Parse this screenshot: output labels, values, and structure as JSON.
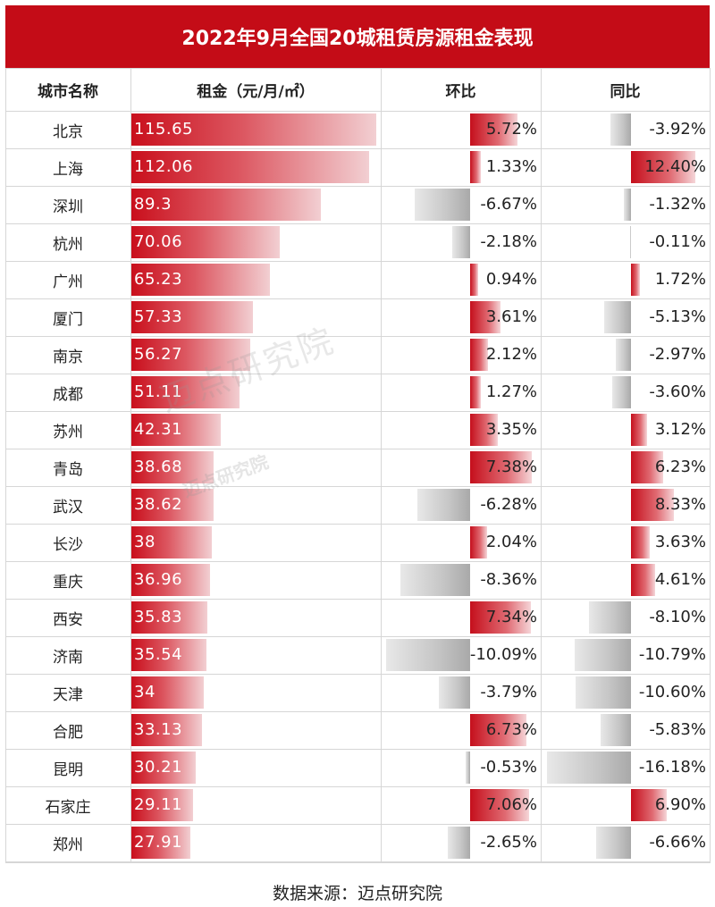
{
  "title": "2022年9月全国20城租赁房源租金表现",
  "headers": {
    "city": "城市名称",
    "rent": "租金（元/月/㎡）",
    "mom": "环比",
    "yoy": "同比"
  },
  "source": "数据来源：迈点研究院",
  "watermark": "迈点研究院",
  "colors": {
    "title_bg": "#c40c17",
    "positive": "#c50f1c",
    "negative": "#a9a9a9"
  },
  "chart_data": {
    "type": "table",
    "columns": [
      "城市名称",
      "租金（元/月/㎡）",
      "环比",
      "同比"
    ],
    "rows": [
      {
        "city": "北京",
        "rent": 115.65,
        "rent_label": "115.65",
        "mom": 5.72,
        "mom_label": "5.72%",
        "yoy": -3.92,
        "yoy_label": "-3.92%"
      },
      {
        "city": "上海",
        "rent": 112.06,
        "rent_label": "112.06",
        "mom": 1.33,
        "mom_label": "1.33%",
        "yoy": 12.4,
        "yoy_label": "12.40%"
      },
      {
        "city": "深圳",
        "rent": 89.3,
        "rent_label": "89.3",
        "mom": -6.67,
        "mom_label": "-6.67%",
        "yoy": -1.32,
        "yoy_label": "-1.32%"
      },
      {
        "city": "杭州",
        "rent": 70.06,
        "rent_label": "70.06",
        "mom": -2.18,
        "mom_label": "-2.18%",
        "yoy": -0.11,
        "yoy_label": "-0.11%"
      },
      {
        "city": "广州",
        "rent": 65.23,
        "rent_label": "65.23",
        "mom": 0.94,
        "mom_label": "0.94%",
        "yoy": 1.72,
        "yoy_label": "1.72%"
      },
      {
        "city": "厦门",
        "rent": 57.33,
        "rent_label": "57.33",
        "mom": 3.61,
        "mom_label": "3.61%",
        "yoy": -5.13,
        "yoy_label": "-5.13%"
      },
      {
        "city": "南京",
        "rent": 56.27,
        "rent_label": "56.27",
        "mom": 2.12,
        "mom_label": "2.12%",
        "yoy": -2.97,
        "yoy_label": "-2.97%"
      },
      {
        "city": "成都",
        "rent": 51.11,
        "rent_label": "51.11",
        "mom": 1.27,
        "mom_label": "1.27%",
        "yoy": -3.6,
        "yoy_label": "-3.60%"
      },
      {
        "city": "苏州",
        "rent": 42.31,
        "rent_label": "42.31",
        "mom": 3.35,
        "mom_label": "3.35%",
        "yoy": 3.12,
        "yoy_label": "3.12%"
      },
      {
        "city": "青岛",
        "rent": 38.68,
        "rent_label": "38.68",
        "mom": 7.38,
        "mom_label": "7.38%",
        "yoy": 6.23,
        "yoy_label": "6.23%"
      },
      {
        "city": "武汉",
        "rent": 38.62,
        "rent_label": "38.62",
        "mom": -6.28,
        "mom_label": "-6.28%",
        "yoy": 8.33,
        "yoy_label": "8.33%"
      },
      {
        "city": "长沙",
        "rent": 38,
        "rent_label": "38",
        "mom": 2.04,
        "mom_label": "2.04%",
        "yoy": 3.63,
        "yoy_label": "3.63%"
      },
      {
        "city": "重庆",
        "rent": 36.96,
        "rent_label": "36.96",
        "mom": -8.36,
        "mom_label": "-8.36%",
        "yoy": 4.61,
        "yoy_label": "4.61%"
      },
      {
        "city": "西安",
        "rent": 35.83,
        "rent_label": "35.83",
        "mom": 7.34,
        "mom_label": "7.34%",
        "yoy": -8.1,
        "yoy_label": "-8.10%"
      },
      {
        "city": "济南",
        "rent": 35.54,
        "rent_label": "35.54",
        "mom": -10.09,
        "mom_label": "-10.09%",
        "yoy": -10.79,
        "yoy_label": "-10.79%"
      },
      {
        "city": "天津",
        "rent": 34,
        "rent_label": "34",
        "mom": -3.79,
        "mom_label": "-3.79%",
        "yoy": -10.6,
        "yoy_label": "-10.60%"
      },
      {
        "city": "合肥",
        "rent": 33.13,
        "rent_label": "33.13",
        "mom": 6.73,
        "mom_label": "6.73%",
        "yoy": -5.83,
        "yoy_label": "-5.83%"
      },
      {
        "city": "昆明",
        "rent": 30.21,
        "rent_label": "30.21",
        "mom": -0.53,
        "mom_label": "-0.53%",
        "yoy": -16.18,
        "yoy_label": "-16.18%"
      },
      {
        "city": "石家庄",
        "rent": 29.11,
        "rent_label": "29.11",
        "mom": 7.06,
        "mom_label": "7.06%",
        "yoy": 6.9,
        "yoy_label": "6.90%"
      },
      {
        "city": "郑州",
        "rent": 27.91,
        "rent_label": "27.91",
        "mom": -2.65,
        "mom_label": "-2.65%",
        "yoy": -6.66,
        "yoy_label": "-6.66%"
      }
    ]
  }
}
